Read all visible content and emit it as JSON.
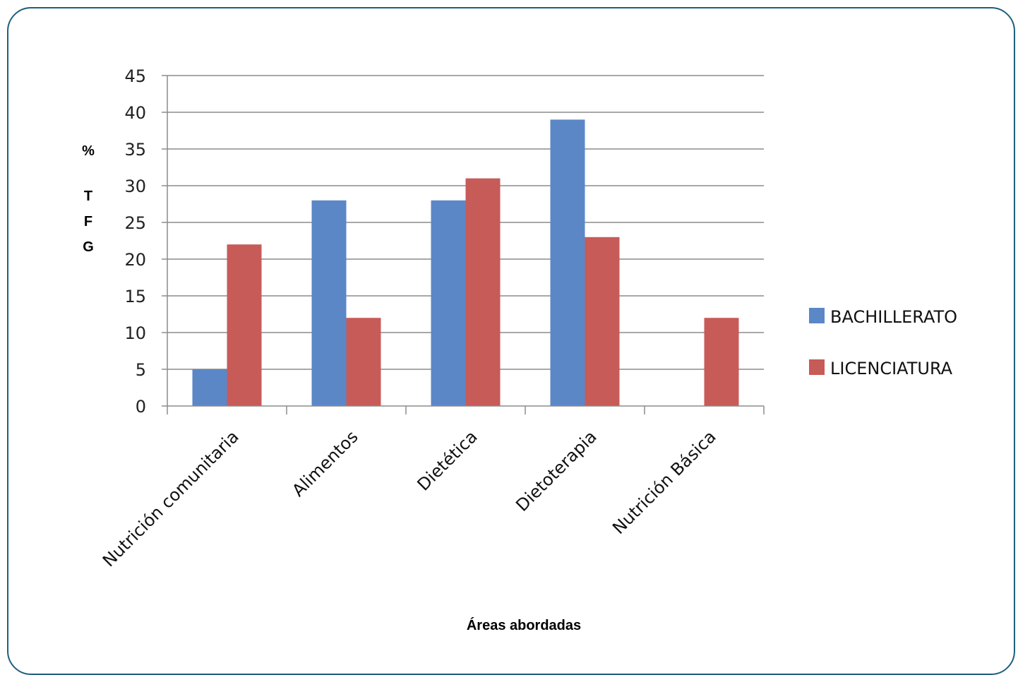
{
  "chart_data": {
    "type": "bar",
    "categories": [
      "Nutrición comunitaria",
      "Alimentos",
      "Dietética",
      "Dietoterapia",
      "Nutrición  Básica"
    ],
    "series": [
      {
        "name": "BACHILLERATO",
        "values": [
          5,
          28,
          28,
          39,
          0
        ],
        "color": "#5b87c7"
      },
      {
        "name": "LICENCIATURA",
        "values": [
          22,
          12,
          31,
          23,
          12
        ],
        "color": "#c75b58"
      }
    ],
    "xlabel": "Áreas abordadas",
    "ylabel_lines": [
      "%",
      "T",
      "F",
      "G"
    ],
    "ylim": [
      0,
      45
    ],
    "yticks": [
      0,
      5,
      10,
      15,
      20,
      25,
      30,
      35,
      40,
      45
    ],
    "grid": true,
    "legend_position": "right"
  }
}
